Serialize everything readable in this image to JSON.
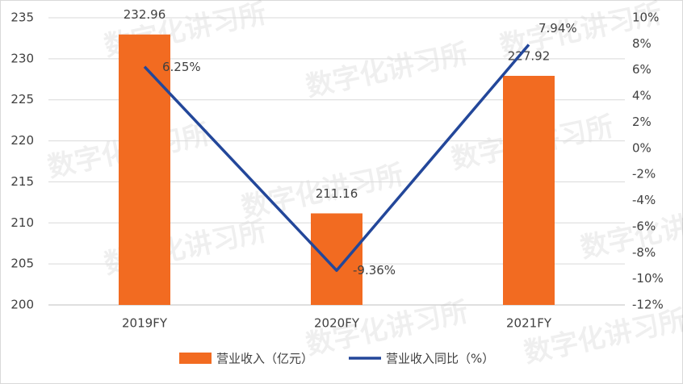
{
  "chart_data": {
    "type": "combo",
    "watermark": "数字化讲习所",
    "categories": [
      "2019FY",
      "2020FY",
      "2021FY"
    ],
    "series": [
      {
        "name": "营业收入（亿元）",
        "type": "bar",
        "color": "#f26b21",
        "values": [
          232.96,
          211.16,
          227.92
        ]
      },
      {
        "name": "营业收入同比（%）",
        "type": "line",
        "axis": "y2",
        "color": "#23479a",
        "values": [
          6.25,
          -9.36,
          7.94
        ],
        "value_labels": [
          "6.25%",
          "-9.36%",
          "7.94%"
        ]
      }
    ],
    "ylim": [
      200,
      235
    ],
    "yticks": [
      200,
      205,
      210,
      215,
      220,
      225,
      230,
      235
    ],
    "y2lim": [
      -12,
      10
    ],
    "y2ticks": [
      {
        "value": -12,
        "label": "-12%"
      },
      {
        "value": -10,
        "label": "-10%"
      },
      {
        "value": -8,
        "label": "-8%"
      },
      {
        "value": -6,
        "label": "-6%"
      },
      {
        "value": -4,
        "label": "-4%"
      },
      {
        "value": -2,
        "label": "-2%"
      },
      {
        "value": 0,
        "label": "0%"
      },
      {
        "value": 2,
        "label": "2%"
      },
      {
        "value": 4,
        "label": "4%"
      },
      {
        "value": 6,
        "label": "6%"
      },
      {
        "value": 8,
        "label": "8%"
      },
      {
        "value": 10,
        "label": "10%"
      }
    ],
    "grid": true,
    "legend": "bottom"
  }
}
